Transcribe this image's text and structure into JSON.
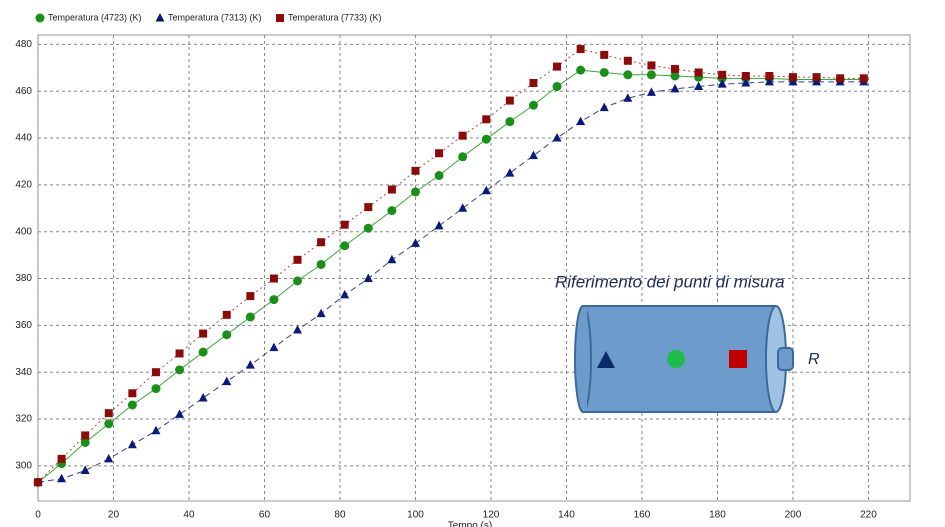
{
  "chart_data": {
    "type": "line",
    "x_label": "Tempo (s)",
    "x": [
      0,
      6.25,
      12.5,
      18.75,
      25,
      31.25,
      37.5,
      43.75,
      50,
      56.25,
      62.5,
      68.75,
      75,
      81.25,
      87.5,
      93.75,
      100,
      106.25,
      112.5,
      118.75,
      125,
      131.25,
      137.5,
      143.75,
      150,
      156.25,
      162.5,
      168.75,
      175,
      181.25,
      187.5,
      193.75,
      200,
      206.25,
      212.5,
      218.75
    ],
    "series": [
      {
        "name": "Temperatura  (4723) (K)",
        "color": "#1a8f1a",
        "line_color": "#39a839",
        "marker": "circle",
        "dash": "none",
        "values": [
          293,
          301,
          310,
          318,
          326,
          333,
          341,
          348.6,
          356,
          363.6,
          371,
          379,
          386,
          394,
          401.5,
          409,
          417,
          424,
          432,
          439.5,
          447,
          454,
          462,
          469,
          468,
          467,
          467,
          466.5,
          466,
          465.5,
          465.5,
          465.5,
          465,
          465,
          465,
          465
        ]
      },
      {
        "name": "Temperatura  (7313) (K)",
        "color": "#0a1a7a",
        "line_color": "#34409a",
        "marker": "triangle",
        "dash": "6,4",
        "values": [
          293,
          294.5,
          298,
          303,
          309,
          315,
          322,
          329,
          336,
          343,
          350.5,
          358,
          365,
          373,
          380,
          388,
          395,
          402.5,
          410,
          417.5,
          425,
          432.5,
          440,
          447,
          453,
          457,
          459.5,
          461,
          462,
          463,
          463.5,
          464,
          464,
          464,
          464,
          464
        ]
      },
      {
        "name": "Temperatura  (7733) (K)",
        "color": "#8b0a0a",
        "line_color": "#c04040",
        "marker": "square",
        "dash": "2,3",
        "values": [
          293,
          303,
          313,
          322.5,
          331,
          340,
          348,
          356.5,
          364.5,
          372.5,
          380,
          388,
          395.5,
          403,
          410.5,
          418,
          426,
          433.5,
          441,
          448,
          456,
          463.5,
          470.5,
          478,
          475.5,
          473,
          471,
          469.5,
          468,
          467,
          466.5,
          466.5,
          466,
          466,
          465.5,
          465.5
        ]
      }
    ],
    "xlim": [
      0,
      231
    ],
    "xticks": [
      0,
      20,
      40,
      60,
      80,
      100,
      120,
      140,
      160,
      180,
      200,
      220
    ],
    "ylim": [
      285,
      484
    ],
    "yticks": [
      300,
      320,
      340,
      360,
      380,
      400,
      420,
      440,
      460,
      480
    ],
    "grid": true,
    "annotation": "Riferimento dei punti di misura",
    "annotation_label": "R"
  }
}
